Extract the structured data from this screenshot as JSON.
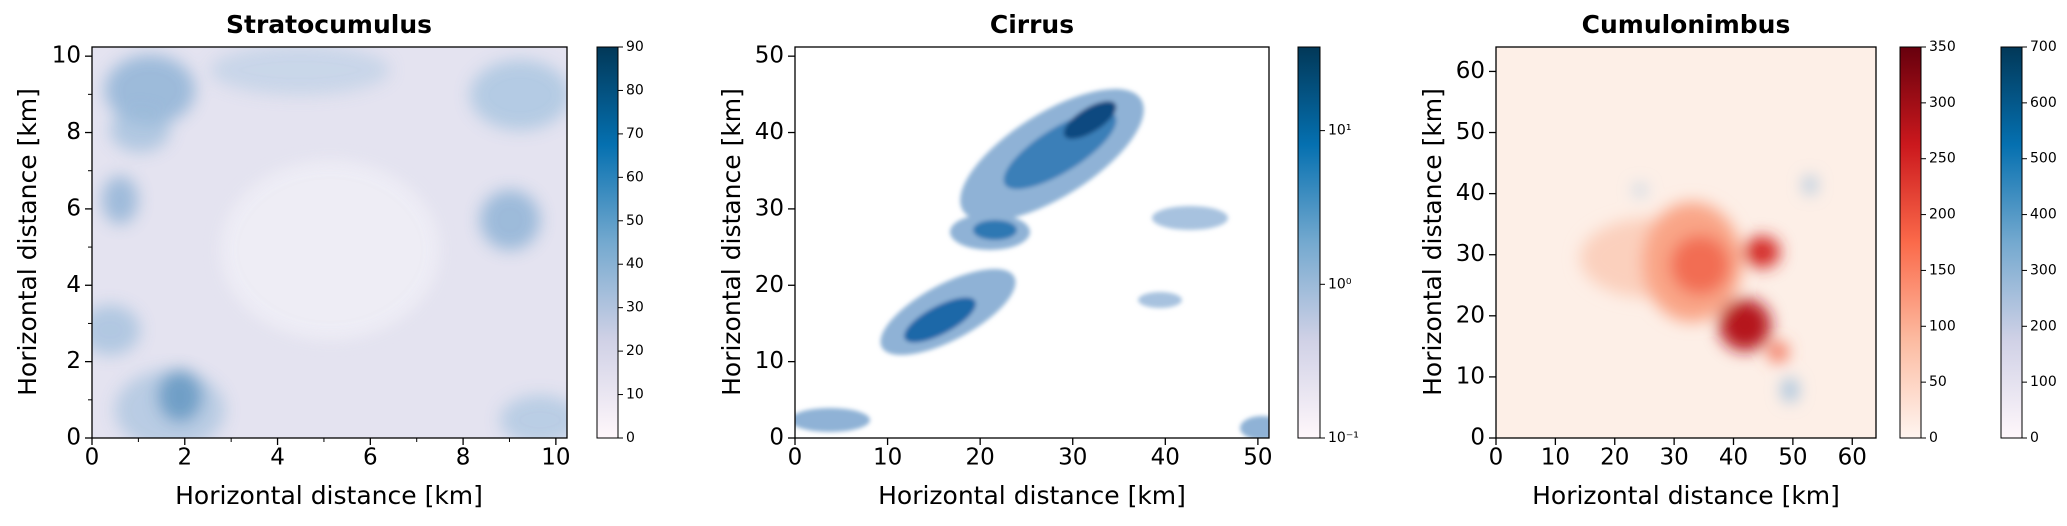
{
  "chart_data": [
    {
      "type": "heatmap",
      "title": "Stratocumulus",
      "xlabel": "Horizontal distance [km]",
      "ylabel": "Horizontal distance [km]",
      "xlim": [
        0,
        10.24
      ],
      "ylim": [
        0,
        10.24
      ],
      "xticks": [
        0,
        2,
        4,
        6,
        8,
        10
      ],
      "yticks": [
        0,
        2,
        4,
        6,
        8,
        10
      ],
      "xminorticks": [
        1,
        3,
        5,
        7,
        9
      ],
      "yminorticks": [
        1,
        3,
        5,
        7,
        9
      ],
      "colorbars": [
        {
          "ylim": [
            0,
            90
          ],
          "yticks": [
            0,
            10,
            20,
            30,
            40,
            50,
            60,
            70,
            80,
            90
          ],
          "log": false,
          "colors": [
            "#fff7fb",
            "#d0d1e6",
            "#74a9cf",
            "#0570b0",
            "#023858"
          ]
        }
      ]
    },
    {
      "type": "heatmap",
      "title": "Cirrus",
      "xlabel": "Horizontal distance [km]",
      "ylabel": "Horizontal distance [km]",
      "xlim": [
        0,
        51.2
      ],
      "ylim": [
        0,
        51.2
      ],
      "xticks": [
        0,
        10,
        20,
        30,
        40,
        50
      ],
      "yticks": [
        0,
        10,
        20,
        30,
        40,
        50
      ],
      "colorbars": [
        {
          "ylim": [
            0.1,
            35
          ],
          "yticks": [
            {
              "value": 0.1,
              "label": "10⁻¹"
            },
            {
              "value": 1,
              "label": "10⁰"
            },
            {
              "value": 10,
              "label": "10¹"
            }
          ],
          "log": true,
          "colors": [
            "#fff7fb",
            "#d0d1e6",
            "#74a9cf",
            "#0570b0",
            "#023858"
          ]
        }
      ]
    },
    {
      "type": "heatmap",
      "title": "Cumulonimbus",
      "xlabel": "Horizontal distance [km]",
      "ylabel": "Horizontal distance [km]",
      "xlim": [
        0,
        64
      ],
      "ylim": [
        0,
        64
      ],
      "xticks": [
        0,
        10,
        20,
        30,
        40,
        50,
        60
      ],
      "yticks": [
        0,
        10,
        20,
        30,
        40,
        50,
        60
      ],
      "colorbars": [
        {
          "ylim": [
            0,
            350
          ],
          "yticks": [
            0,
            50,
            100,
            150,
            200,
            250,
            300,
            350
          ],
          "log": false,
          "colors": [
            "#fff5f0",
            "#fcbba1",
            "#fb6a4a",
            "#cb181d",
            "#67000d"
          ]
        },
        {
          "ylim": [
            0,
            700
          ],
          "yticks": [
            0,
            100,
            200,
            300,
            400,
            500,
            600,
            700
          ],
          "log": false,
          "colors": [
            "#fff7fb",
            "#d0d1e6",
            "#74a9cf",
            "#0570b0",
            "#023858"
          ]
        }
      ]
    }
  ]
}
